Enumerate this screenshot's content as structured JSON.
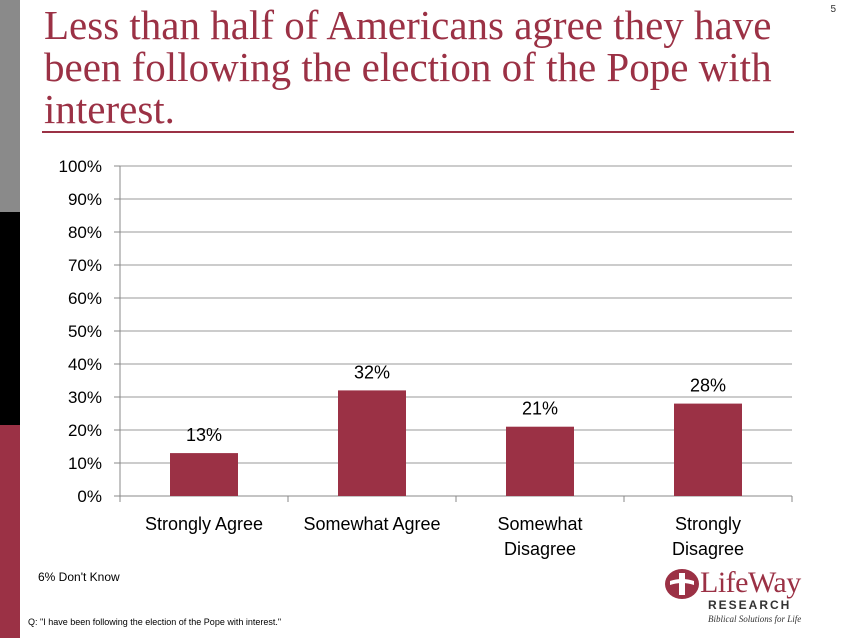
{
  "slide_number": "5",
  "title": "Less than half of Americans agree they have been following the election of the Pope with interest.",
  "chart_data": {
    "type": "bar",
    "categories": [
      [
        "Strongly Agree"
      ],
      [
        "Somewhat Agree"
      ],
      [
        "Somewhat",
        "Disagree"
      ],
      [
        "Strongly",
        "Disagree"
      ]
    ],
    "values": [
      13,
      32,
      21,
      28
    ],
    "data_labels": [
      "13%",
      "32%",
      "21%",
      "28%"
    ],
    "ylim": [
      0,
      100
    ],
    "yticks": [
      "0%",
      "10%",
      "20%",
      "30%",
      "40%",
      "50%",
      "60%",
      "70%",
      "80%",
      "90%",
      "100%"
    ],
    "grid": true,
    "bar_color": "#9b3145"
  },
  "footnote": "6% Don't Know",
  "question": "Q: \"I have been following the election of the Pope with interest.\"",
  "logo": {
    "name": "LifeWay",
    "sub": "RESEARCH",
    "tagline": "Biblical Solutions for Life"
  },
  "colors": {
    "accent": "#9b3145",
    "gray": "#8a8a8a",
    "black": "#000000"
  }
}
